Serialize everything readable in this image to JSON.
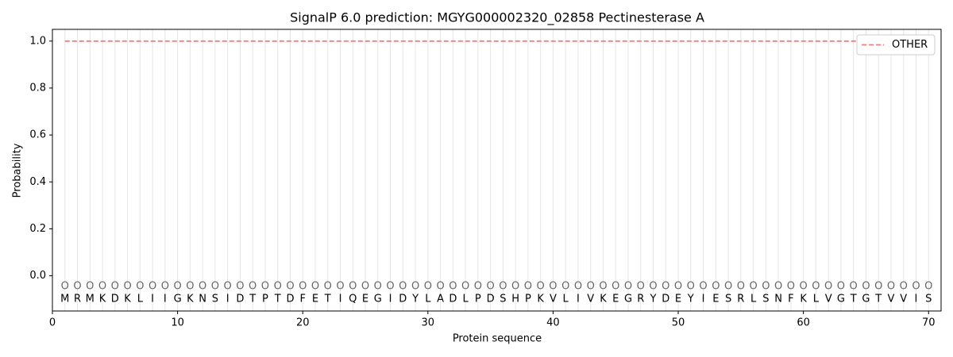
{
  "chart_data": {
    "type": "line",
    "title": "SignalP 6.0 prediction: MGYG000002320_02858 Pectinesterase A",
    "xlabel": "Protein sequence",
    "ylabel": "Probability",
    "x": [
      1,
      2,
      3,
      4,
      5,
      6,
      7,
      8,
      9,
      10,
      11,
      12,
      13,
      14,
      15,
      16,
      17,
      18,
      19,
      20,
      21,
      22,
      23,
      24,
      25,
      26,
      27,
      28,
      29,
      30,
      31,
      32,
      33,
      34,
      35,
      36,
      37,
      38,
      39,
      40,
      41,
      42,
      43,
      44,
      45,
      46,
      47,
      48,
      49,
      50,
      51,
      52,
      53,
      54,
      55,
      56,
      57,
      58,
      59,
      60,
      61,
      62,
      63,
      64,
      65,
      66,
      67,
      68,
      69,
      70
    ],
    "residues": [
      "M",
      "R",
      "M",
      "K",
      "D",
      "K",
      "L",
      "I",
      "I",
      "G",
      "K",
      "N",
      "S",
      "I",
      "D",
      "T",
      "P",
      "T",
      "D",
      "F",
      "E",
      "T",
      "I",
      "Q",
      "E",
      "G",
      "I",
      "D",
      "Y",
      "L",
      "A",
      "D",
      "L",
      "P",
      "D",
      "S",
      "H",
      "P",
      "K",
      "V",
      "L",
      "I",
      "V",
      "K",
      "E",
      "G",
      "R",
      "Y",
      "D",
      "E",
      "Y",
      "I",
      "E",
      "S",
      "R",
      "L",
      "S",
      "N",
      "F",
      "K",
      "L",
      "V",
      "G",
      "T",
      "G",
      "T",
      "V",
      "V",
      "I",
      "S"
    ],
    "predictions": [
      "O",
      "O",
      "O",
      "O",
      "O",
      "O",
      "O",
      "O",
      "O",
      "O",
      "O",
      "O",
      "O",
      "O",
      "O",
      "O",
      "O",
      "O",
      "O",
      "O",
      "O",
      "O",
      "O",
      "O",
      "O",
      "O",
      "O",
      "O",
      "O",
      "O",
      "O",
      "O",
      "O",
      "O",
      "O",
      "O",
      "O",
      "O",
      "O",
      "O",
      "O",
      "O",
      "O",
      "O",
      "O",
      "O",
      "O",
      "O",
      "O",
      "O",
      "O",
      "O",
      "O",
      "O",
      "O",
      "O",
      "O",
      "O",
      "O",
      "O",
      "O",
      "O",
      "O",
      "O",
      "O",
      "O",
      "O",
      "O",
      "O",
      "O"
    ],
    "series": [
      {
        "name": "OTHER",
        "color": "#f08080",
        "values": [
          1,
          1,
          1,
          1,
          1,
          1,
          1,
          1,
          1,
          1,
          1,
          1,
          1,
          1,
          1,
          1,
          1,
          1,
          1,
          1,
          1,
          1,
          1,
          1,
          1,
          1,
          1,
          1,
          1,
          1,
          1,
          1,
          1,
          1,
          1,
          1,
          1,
          1,
          1,
          1,
          1,
          1,
          1,
          1,
          1,
          1,
          1,
          1,
          1,
          1,
          1,
          1,
          1,
          1,
          1,
          1,
          1,
          1,
          1,
          1,
          1,
          1,
          1,
          1,
          1,
          1,
          1,
          1,
          1,
          1
        ]
      }
    ],
    "xlim": [
      0,
      71
    ],
    "ylim": [
      -0.15,
      1.05
    ],
    "xticks": [
      0,
      10,
      20,
      30,
      40,
      50,
      60,
      70
    ],
    "yticks": [
      {
        "value": 0,
        "label": "0.0"
      },
      {
        "value": 0.2,
        "label": "0.2"
      },
      {
        "value": 0.4,
        "label": "0.4"
      },
      {
        "value": 0.6,
        "label": "0.6"
      },
      {
        "value": 0.8,
        "label": "0.8"
      },
      {
        "value": 1,
        "label": "1.0"
      }
    ],
    "legend": "upper right"
  }
}
